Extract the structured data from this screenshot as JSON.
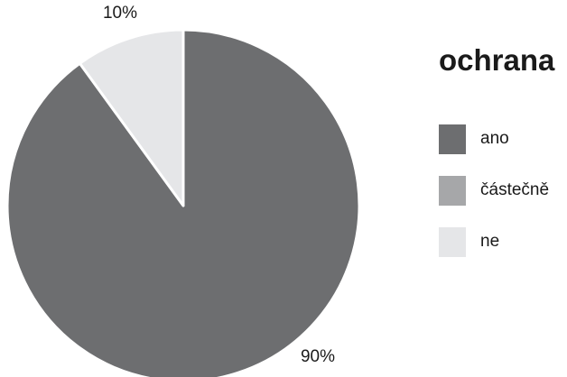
{
  "chart_data": {
    "type": "pie",
    "title": "ochrana",
    "categories": [
      "ano",
      "částečně",
      "ne"
    ],
    "values": [
      90,
      0,
      10
    ],
    "value_labels": [
      "90%",
      "",
      "10%"
    ],
    "colors": [
      "#6d6e70",
      "#a6a7a9",
      "#e5e6e8"
    ],
    "legend_position": "right",
    "start_angle_deg": 0,
    "direction": "clockwise"
  }
}
